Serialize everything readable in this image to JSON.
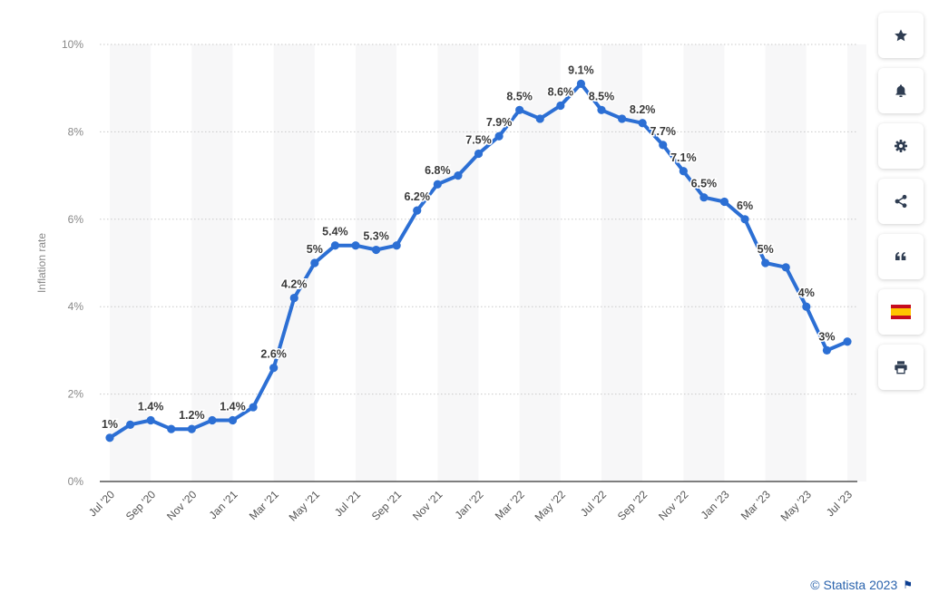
{
  "chart_data": {
    "type": "line",
    "ylabel": "Inflation rate",
    "xlabel": "",
    "ylim": [
      0,
      10
    ],
    "yticks": [
      "0%",
      "2%",
      "4%",
      "6%",
      "8%",
      "10%"
    ],
    "grid": true,
    "line_color": "#2c6fd4",
    "categories": [
      "Jul '20",
      "Aug '20",
      "Sep '20",
      "Oct '20",
      "Nov '20",
      "Dec '20",
      "Jan '21",
      "Feb '21",
      "Mar '21",
      "Apr '21",
      "May '21",
      "Jun '21",
      "Jul '21",
      "Aug '21",
      "Sep '21",
      "Oct '21",
      "Nov '21",
      "Dec '21",
      "Jan '22",
      "Feb '22",
      "Mar '22",
      "Apr '22",
      "May '22",
      "Jun '22",
      "Jul '22",
      "Aug '22",
      "Sep '22",
      "Oct '22",
      "Nov '22",
      "Dec '22",
      "Jan '23",
      "Feb '23",
      "Mar '23",
      "Apr '23",
      "May '23",
      "Jun '23",
      "Jul '23"
    ],
    "x_tick_labels": [
      "Jul '20",
      "Sep '20",
      "Nov '20",
      "Jan '21",
      "Mar '21",
      "May '21",
      "Jul '21",
      "Sep '21",
      "Nov '21",
      "Jan '22",
      "Mar '22",
      "May '22",
      "Jul '22",
      "Sep '22",
      "Nov '22",
      "Jan '23",
      "Mar '23",
      "May '23",
      "Jul '23"
    ],
    "series": [
      {
        "values": [
          1.0,
          1.3,
          1.4,
          1.2,
          1.2,
          1.4,
          1.4,
          1.7,
          2.6,
          4.2,
          5.0,
          5.4,
          5.4,
          5.3,
          5.4,
          6.2,
          6.8,
          7.0,
          7.5,
          7.9,
          8.5,
          8.3,
          8.6,
          9.1,
          8.5,
          8.3,
          8.2,
          7.7,
          7.1,
          6.5,
          6.4,
          6.0,
          5.0,
          4.9,
          4.0,
          3.0,
          3.2
        ],
        "data_labels": [
          "1%",
          "",
          "1.4%",
          "",
          "1.2%",
          "",
          "1.4%",
          "",
          "2.6%",
          "4.2%",
          "5%",
          "5.4%",
          "",
          "5.3%",
          "",
          "6.2%",
          "6.8%",
          "",
          "7.5%",
          "7.9%",
          "8.5%",
          "",
          "8.6%",
          "9.1%",
          "8.5%",
          "",
          "8.2%",
          "7.7%",
          "7.1%",
          "6.5%",
          "",
          "6%",
          "5%",
          "",
          "4%",
          "3%",
          ""
        ]
      }
    ]
  },
  "toolbar": {
    "favorite": "star-icon",
    "notify": "bell-icon",
    "settings": "gear-icon",
    "share": "share-icon",
    "cite": "quote-icon",
    "language": "spain-flag-icon",
    "print": "print-icon"
  },
  "credits": {
    "text": "© Statista 2023"
  }
}
